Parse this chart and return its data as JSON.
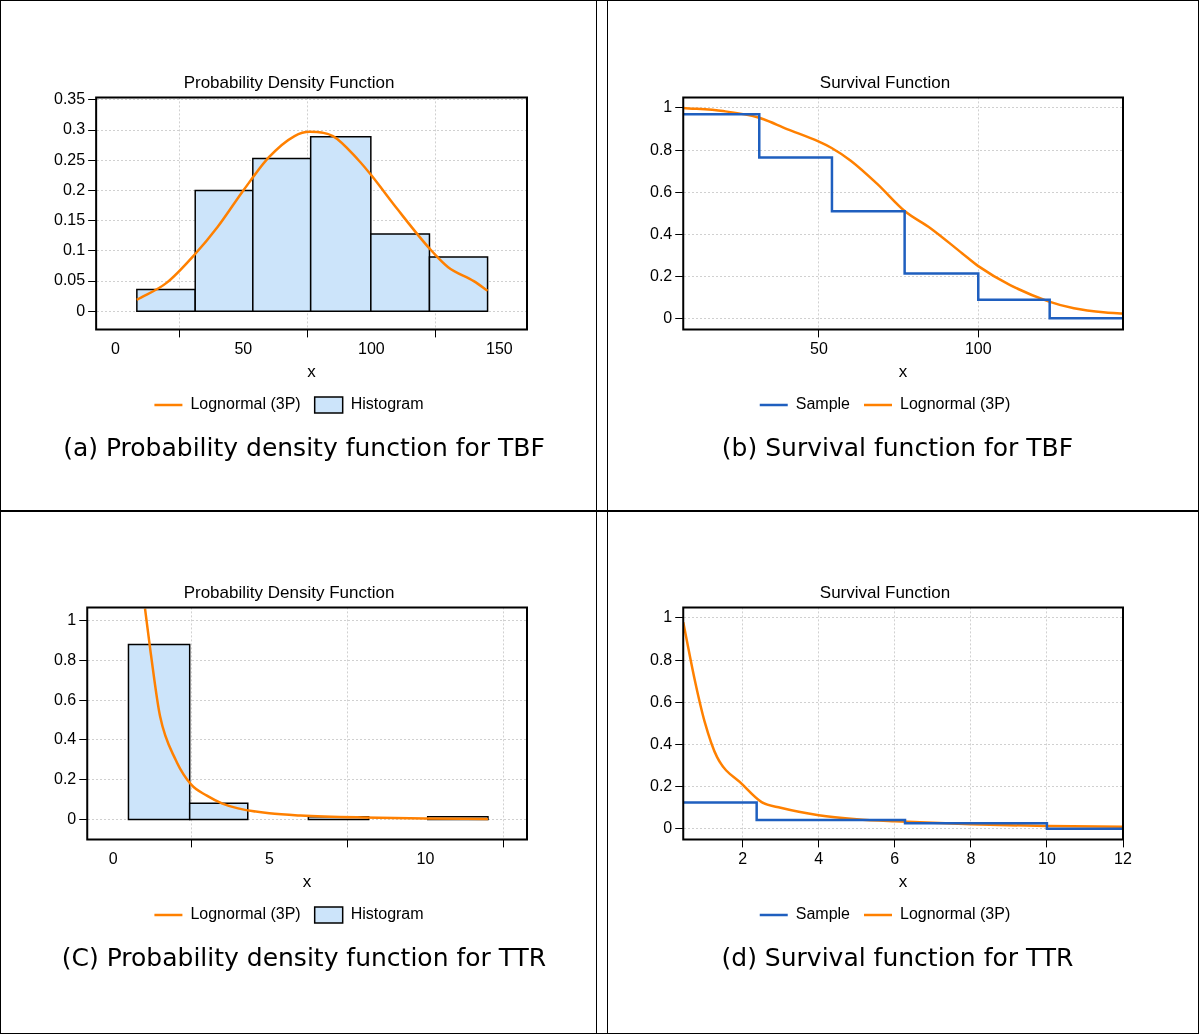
{
  "chart_data": [
    {
      "type": "histogram",
      "title": "Probability Density Function",
      "xlabel": "x",
      "annotations": [
        "(a)  Probability density function for TBF"
      ],
      "xlim": [
        -7.5,
        160.8
      ],
      "xticks": [
        0,
        50,
        100,
        150
      ],
      "ylim": [
        -0.03,
        0.354
      ],
      "yticks": [
        0,
        0.05,
        0.1,
        0.15,
        0.2,
        0.25,
        0.3,
        0.35
      ],
      "grid": true,
      "legend": "bottom",
      "series": [
        {
          "name": "Histogram",
          "color": "#cce4fa",
          "bins": [
            8.4,
            31.2,
            53.7,
            76.3,
            99.8,
            122.7,
            145.4
          ],
          "values": [
            0.036,
            0.2,
            0.253,
            0.289,
            0.128,
            0.09
          ]
        },
        {
          "name": "Lognormal (3P)",
          "type": "line",
          "color": "#ff8000",
          "x": [
            8.4,
            20,
            31,
            40,
            50,
            60,
            70,
            76,
            85,
            95,
            100,
            110,
            122.7,
            130,
            140,
            145.4
          ],
          "values": [
            0.019,
            0.047,
            0.094,
            0.14,
            0.2,
            0.255,
            0.29,
            0.297,
            0.29,
            0.25,
            0.225,
            0.17,
            0.104,
            0.073,
            0.05,
            0.034
          ]
        }
      ]
    },
    {
      "type": "step",
      "title": "Survival Function",
      "xlabel": "x",
      "annotations": [
        "(b)  Survival function for TBF"
      ],
      "xlim": [
        7.45,
        145.4
      ],
      "xticks": [
        50,
        100
      ],
      "ylim": [
        -0.05,
        1.05
      ],
      "yticks": [
        0,
        0.2,
        0.4,
        0.6,
        0.8,
        1
      ],
      "grid": true,
      "legend": "bottom",
      "series": [
        {
          "name": "Sample",
          "color": "#1f5fbf",
          "x": [
            7.45,
            31.3,
            54.1,
            76.9,
            100,
            122.4,
            145.4
          ],
          "values": [
            0.97,
            0.765,
            0.51,
            0.215,
            0.09,
            0.003,
            0.003
          ]
        },
        {
          "name": "Lognormal (3P)",
          "type": "line",
          "color": "#ff8000",
          "x": [
            7.45,
            20,
            31,
            40,
            50,
            54,
            60,
            68.3,
            77,
            85,
            95,
            100,
            110,
            122,
            130,
            140,
            145.4
          ],
          "values": [
            1.0,
            0.985,
            0.955,
            0.9,
            0.84,
            0.81,
            0.75,
            0.64,
            0.51,
            0.43,
            0.31,
            0.25,
            0.16,
            0.083,
            0.05,
            0.03,
            0.025
          ]
        }
      ]
    },
    {
      "type": "histogram",
      "title": "Probability Density Function",
      "xlabel": "x",
      "annotations": [
        "(C) Probability density function for TTR"
      ],
      "xlim": [
        -0.83,
        13.25
      ],
      "xticks": [
        0,
        5,
        10
      ],
      "ylim": [
        -0.1,
        1.066
      ],
      "yticks": [
        0,
        0.2,
        0.4,
        0.6,
        0.8,
        1
      ],
      "grid": true,
      "legend": "bottom",
      "series": [
        {
          "name": "Histogram",
          "color": "#cce4fa",
          "bins": [
            0.49,
            2.45,
            4.31,
            6.25,
            8.18,
            10.07,
            12.0
          ],
          "values": [
            0.88,
            0.082,
            0,
            0.014,
            0,
            0.014
          ]
        },
        {
          "name": "Lognormal (3P)",
          "type": "line",
          "color": "#ff8000",
          "x": [
            1.02,
            1.2,
            1.5,
            2,
            2.5,
            3,
            3.5,
            4,
            5,
            6,
            8,
            10,
            12
          ],
          "values": [
            1.06,
            0.84,
            0.52,
            0.3,
            0.175,
            0.12,
            0.08,
            0.056,
            0.031,
            0.02,
            0.01,
            0.005,
            0.003
          ]
        }
      ]
    },
    {
      "type": "step",
      "title": "Survival Function",
      "xlabel": "x",
      "annotations": [
        "(d) Survival function for TTR"
      ],
      "xlim": [
        0.44,
        12
      ],
      "xticks": [
        2,
        4,
        6,
        8,
        10,
        12
      ],
      "ylim": [
        -0.05,
        1.05
      ],
      "yticks": [
        0,
        0.2,
        0.4,
        0.6,
        0.8,
        1
      ],
      "grid": true,
      "legend": "bottom",
      "series": [
        {
          "name": "Sample",
          "color": "#1f5fbf",
          "x": [
            0.44,
            2.37,
            6.27,
            10.0,
            12
          ],
          "values": [
            0.125,
            0.042,
            0.026,
            0,
            0
          ]
        },
        {
          "name": "Lognormal (3P)",
          "type": "line",
          "color": "#ff8000",
          "x": [
            0.44,
            0.75,
            1.0,
            1.33,
            2,
            2.5,
            3,
            4,
            5,
            6,
            8,
            10,
            12
          ],
          "values": [
            0.98,
            0.7,
            0.51,
            0.34,
            0.21,
            0.127,
            0.1,
            0.065,
            0.046,
            0.036,
            0.022,
            0.013,
            0.01
          ]
        }
      ]
    }
  ]
}
